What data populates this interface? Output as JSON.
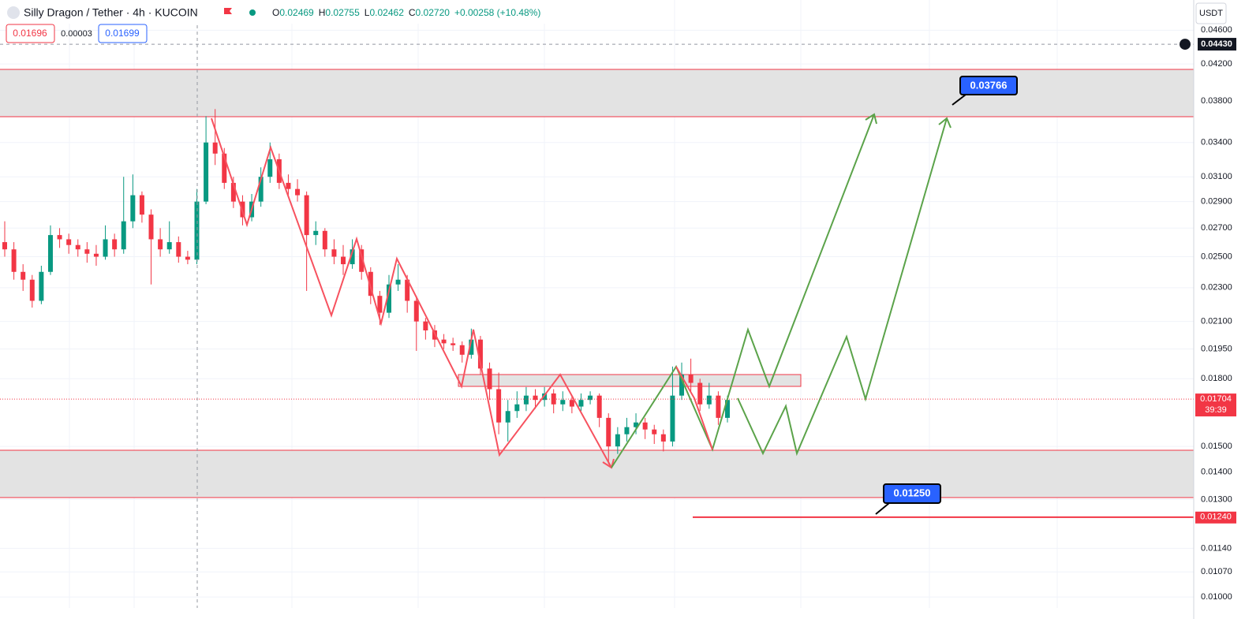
{
  "header": {
    "symbol": "Silly Dragon / Tether · 4h · KUCOIN",
    "ohlc": [
      {
        "label": "O",
        "value": "0.02469"
      },
      {
        "label": "H",
        "value": "0.02755"
      },
      {
        "label": "L",
        "value": "0.02462"
      },
      {
        "label": "C",
        "value": "0.02720"
      }
    ],
    "change": "+0.00258 (+10.48%)"
  },
  "order_buttons": {
    "sell": "0.01696",
    "spread": "0.00003",
    "buy": "0.01699"
  },
  "currency": "USDT",
  "chart_data": {
    "type": "candlestick",
    "log_scale": true,
    "grid": true,
    "ylim": [
      0.00971,
      0.0499
    ],
    "yticks": [
      {
        "value": 0.046,
        "label": "0.04600"
      },
      {
        "value": 0.042,
        "label": "0.04200"
      },
      {
        "value": 0.038,
        "label": "0.03800"
      },
      {
        "value": 0.034,
        "label": "0.03400"
      },
      {
        "value": 0.031,
        "label": "0.03100"
      },
      {
        "value": 0.029,
        "label": "0.02900"
      },
      {
        "value": 0.027,
        "label": "0.02700"
      },
      {
        "value": 0.025,
        "label": "0.02500"
      },
      {
        "value": 0.023,
        "label": "0.02300"
      },
      {
        "value": 0.021,
        "label": "0.02100"
      },
      {
        "value": 0.0195,
        "label": "0.01950"
      },
      {
        "value": 0.018,
        "label": "0.01800"
      },
      {
        "value": 0.015,
        "label": "0.01500"
      },
      {
        "value": 0.014,
        "label": "0.01400"
      },
      {
        "value": 0.013,
        "label": "0.01300"
      },
      {
        "value": 0.0114,
        "label": "0.01140"
      },
      {
        "value": 0.0107,
        "label": "0.01070"
      },
      {
        "value": 0.01,
        "label": "0.01000"
      }
    ],
    "up_color": "#089981",
    "down_color": "#f23645",
    "open": [
      0.026,
      0.0255,
      0.024,
      0.0235,
      0.0222,
      0.024,
      0.0265,
      0.0262,
      0.0258,
      0.0255,
      0.0252,
      0.025,
      0.0262,
      0.0255,
      0.0275,
      0.0295,
      0.028,
      0.0262,
      0.0255,
      0.026,
      0.025,
      0.0248,
      0.029,
      0.034,
      0.033,
      0.0305,
      0.029,
      0.0278,
      0.029,
      0.031,
      0.0325,
      0.0305,
      0.03,
      0.0295,
      0.0265,
      0.0268,
      0.0255,
      0.025,
      0.0245,
      0.0255,
      0.024,
      0.0225,
      0.0215,
      0.0232,
      0.0235,
      0.0222,
      0.021,
      0.0205,
      0.02,
      0.0198,
      0.0197,
      0.0192,
      0.02,
      0.0185,
      0.0175,
      0.016,
      0.0165,
      0.0168,
      0.0172,
      0.017,
      0.0173,
      0.0168,
      0.017,
      0.0167,
      0.017,
      0.0172,
      0.0162,
      0.015,
      0.0155,
      0.0158,
      0.016,
      0.0157,
      0.0155,
      0.0152,
      0.0172,
      0.0182,
      0.0178,
      0.0168,
      0.0172,
      0.0162
    ],
    "high": [
      0.0275,
      0.026,
      0.0245,
      0.0238,
      0.0244,
      0.0272,
      0.027,
      0.0266,
      0.0262,
      0.026,
      0.0258,
      0.0272,
      0.0266,
      0.031,
      0.0312,
      0.0298,
      0.0284,
      0.027,
      0.0275,
      0.0264,
      0.0254,
      0.03,
      0.0365,
      0.0372,
      0.0335,
      0.031,
      0.0295,
      0.0296,
      0.0318,
      0.034,
      0.033,
      0.0312,
      0.0308,
      0.0298,
      0.0275,
      0.027,
      0.0262,
      0.0258,
      0.0262,
      0.0258,
      0.0243,
      0.0228,
      0.0238,
      0.0245,
      0.0238,
      0.0225,
      0.0212,
      0.0208,
      0.0203,
      0.0201,
      0.0199,
      0.0206,
      0.0202,
      0.0188,
      0.0183,
      0.017,
      0.0174,
      0.0176,
      0.0175,
      0.0176,
      0.0175,
      0.0174,
      0.0172,
      0.0173,
      0.0174,
      0.0173,
      0.0164,
      0.0158,
      0.0162,
      0.0164,
      0.0162,
      0.0159,
      0.0157,
      0.0186,
      0.0188,
      0.019,
      0.018,
      0.0178,
      0.0174,
      0.0172
    ],
    "low": [
      0.025,
      0.0235,
      0.0228,
      0.0218,
      0.022,
      0.0238,
      0.0256,
      0.0252,
      0.025,
      0.0246,
      0.0244,
      0.0248,
      0.025,
      0.0252,
      0.027,
      0.0274,
      0.0232,
      0.025,
      0.0252,
      0.0246,
      0.0245,
      0.0245,
      0.0288,
      0.032,
      0.03,
      0.0285,
      0.0272,
      0.0275,
      0.0286,
      0.0305,
      0.03,
      0.0295,
      0.029,
      0.0228,
      0.0258,
      0.025,
      0.0245,
      0.0238,
      0.0242,
      0.0235,
      0.022,
      0.0208,
      0.0212,
      0.0228,
      0.0215,
      0.0194,
      0.02,
      0.0196,
      0.0195,
      0.0194,
      0.0188,
      0.019,
      0.0182,
      0.017,
      0.0155,
      0.0152,
      0.0162,
      0.0165,
      0.0166,
      0.0167,
      0.0164,
      0.0165,
      0.0164,
      0.0165,
      0.0168,
      0.0158,
      0.0143,
      0.0147,
      0.0152,
      0.0155,
      0.0153,
      0.0151,
      0.0148,
      0.015,
      0.017,
      0.0174,
      0.0165,
      0.0166,
      0.0159,
      0.016
    ],
    "close": [
      0.0255,
      0.024,
      0.0235,
      0.0222,
      0.024,
      0.0265,
      0.0262,
      0.0258,
      0.0255,
      0.0252,
      0.025,
      0.0262,
      0.0255,
      0.0275,
      0.0295,
      0.028,
      0.0262,
      0.0255,
      0.026,
      0.025,
      0.0248,
      0.029,
      0.034,
      0.033,
      0.0305,
      0.029,
      0.0278,
      0.029,
      0.031,
      0.0325,
      0.0305,
      0.03,
      0.0295,
      0.0265,
      0.0268,
      0.0255,
      0.025,
      0.0245,
      0.0255,
      0.024,
      0.0225,
      0.0215,
      0.0232,
      0.0235,
      0.0222,
      0.021,
      0.0205,
      0.02,
      0.0198,
      0.0197,
      0.0192,
      0.02,
      0.0185,
      0.0175,
      0.016,
      0.0165,
      0.0168,
      0.0172,
      0.017,
      0.0173,
      0.0168,
      0.017,
      0.0167,
      0.017,
      0.0172,
      0.0162,
      0.015,
      0.0155,
      0.0158,
      0.016,
      0.0157,
      0.0155,
      0.0152,
      0.0172,
      0.0182,
      0.0178,
      0.0168,
      0.0172,
      0.0162,
      0.017
    ],
    "current_price": {
      "value": 0.01704,
      "label": "0.01704"
    },
    "countdown": "39:39",
    "crosshair_price": {
      "value": 0.0443,
      "label": "0.04430"
    },
    "support_level": {
      "value": 0.0124,
      "label": "0.01240"
    },
    "annotations": [
      "0.03766",
      "0.01250"
    ]
  }
}
